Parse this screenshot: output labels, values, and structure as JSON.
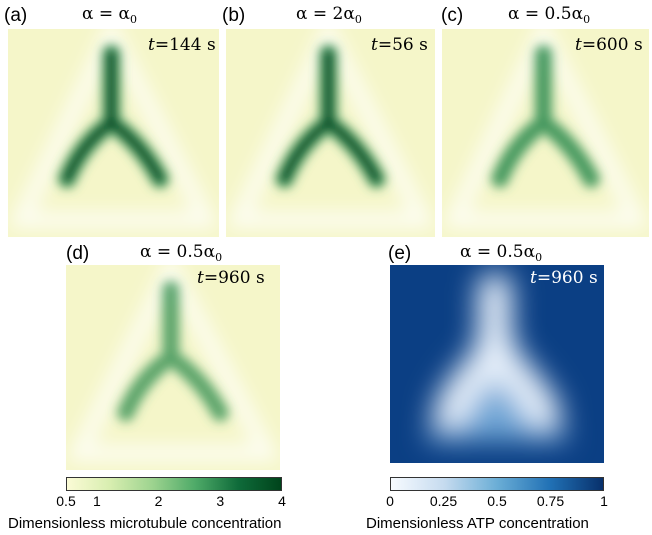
{
  "panels": [
    {
      "letter": "(a)",
      "alpha_lhs": "α = α",
      "alpha_sub": "0",
      "time_label": "t",
      "time_value": "=144 s",
      "field": "microtubule",
      "strength": 1.0
    },
    {
      "letter": "(b)",
      "alpha_lhs": "α = 2α",
      "alpha_sub": "0",
      "time_label": "t",
      "time_value": "=56 s",
      "field": "microtubule",
      "strength": 1.0
    },
    {
      "letter": "(c)",
      "alpha_lhs": "α = 0.5α",
      "alpha_sub": "0",
      "time_label": "t",
      "time_value": "=600 s",
      "field": "microtubule",
      "strength": 0.75
    },
    {
      "letter": "(d)",
      "alpha_lhs": "α = 0.5α",
      "alpha_sub": "0",
      "time_label": "t",
      "time_value": "=960 s",
      "field": "microtubule",
      "strength": 0.6
    },
    {
      "letter": "(e)",
      "alpha_lhs": "α = 0.5α",
      "alpha_sub": "0",
      "time_label": "t",
      "time_value": "=960 s",
      "field": "atp",
      "strength": 1.0
    }
  ],
  "colorbars": {
    "microtubule": {
      "ticks": [
        "0.5",
        "1",
        "2",
        "3",
        "4"
      ],
      "tick_values": [
        0.5,
        1,
        2,
        3,
        4
      ],
      "range": [
        0.5,
        4
      ],
      "label": "Dimensionless microtubule concentration",
      "colors": [
        "#fbfbd6",
        "#d8eeb0",
        "#9dd38f",
        "#4eaa68",
        "#0f6b3a",
        "#00441b"
      ]
    },
    "atp": {
      "ticks": [
        "0",
        "0.25",
        "0.5",
        "0.75",
        "1"
      ],
      "tick_values": [
        0,
        0.25,
        0.5,
        0.75,
        1
      ],
      "range": [
        0,
        1
      ],
      "label": "Dimensionless ATP concentration",
      "colors": [
        "#f7fbff",
        "#c6dbef",
        "#6baed6",
        "#2171b5",
        "#08306b"
      ]
    }
  }
}
